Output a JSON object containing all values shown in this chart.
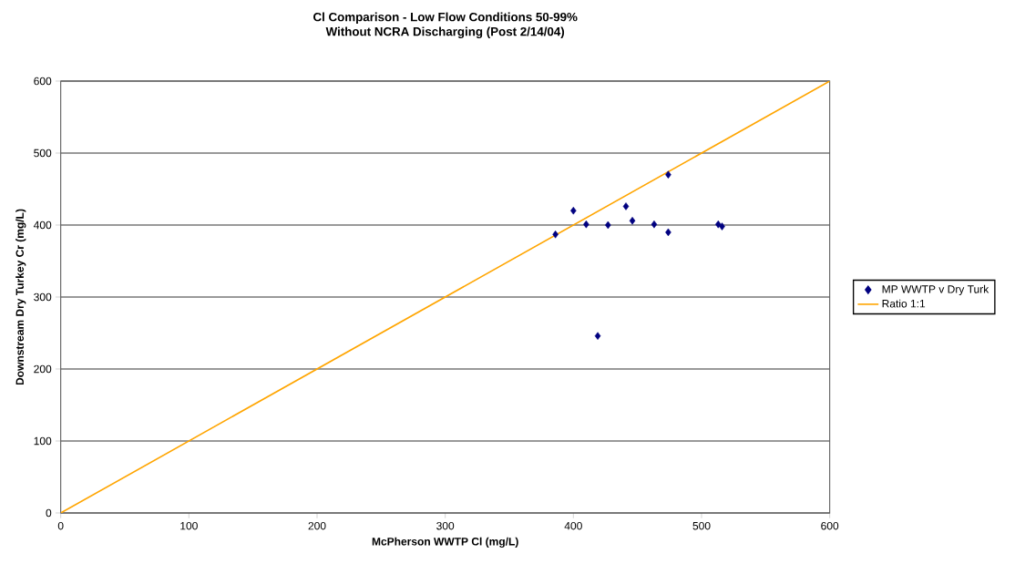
{
  "chart_data": {
    "type": "scatter",
    "title": "Cl Comparison - Low Flow Conditions 50-99%",
    "subtitle": "Without NCRA Discharging (Post 2/14/04)",
    "xlabel": "McPherson WWTP Cl (mg/L)",
    "ylabel": "Downstream Dry Turkey Cr (mg/L)",
    "series": [
      {
        "name": "MP WWTP v Dry Turk",
        "type": "scatter",
        "color": "#000080",
        "marker": "diamond",
        "x": [
          386,
          400,
          410,
          427,
          441,
          446,
          463,
          474,
          474,
          513,
          516,
          419
        ],
        "values": [
          387,
          420,
          401,
          400,
          426,
          406,
          401,
          470,
          390,
          401,
          398,
          246
        ]
      },
      {
        "name": "Ratio 1:1",
        "type": "line",
        "color": "#ffa500",
        "marker": "none",
        "x": [
          0,
          600
        ],
        "values": [
          0,
          600
        ]
      }
    ],
    "xlim": [
      0,
      600
    ],
    "ylim": [
      0,
      600
    ],
    "xticks": [
      0,
      100,
      200,
      300,
      400,
      500,
      600
    ],
    "yticks": [
      0,
      100,
      200,
      300,
      400,
      500,
      600
    ],
    "grid": "y",
    "legend": "right"
  }
}
